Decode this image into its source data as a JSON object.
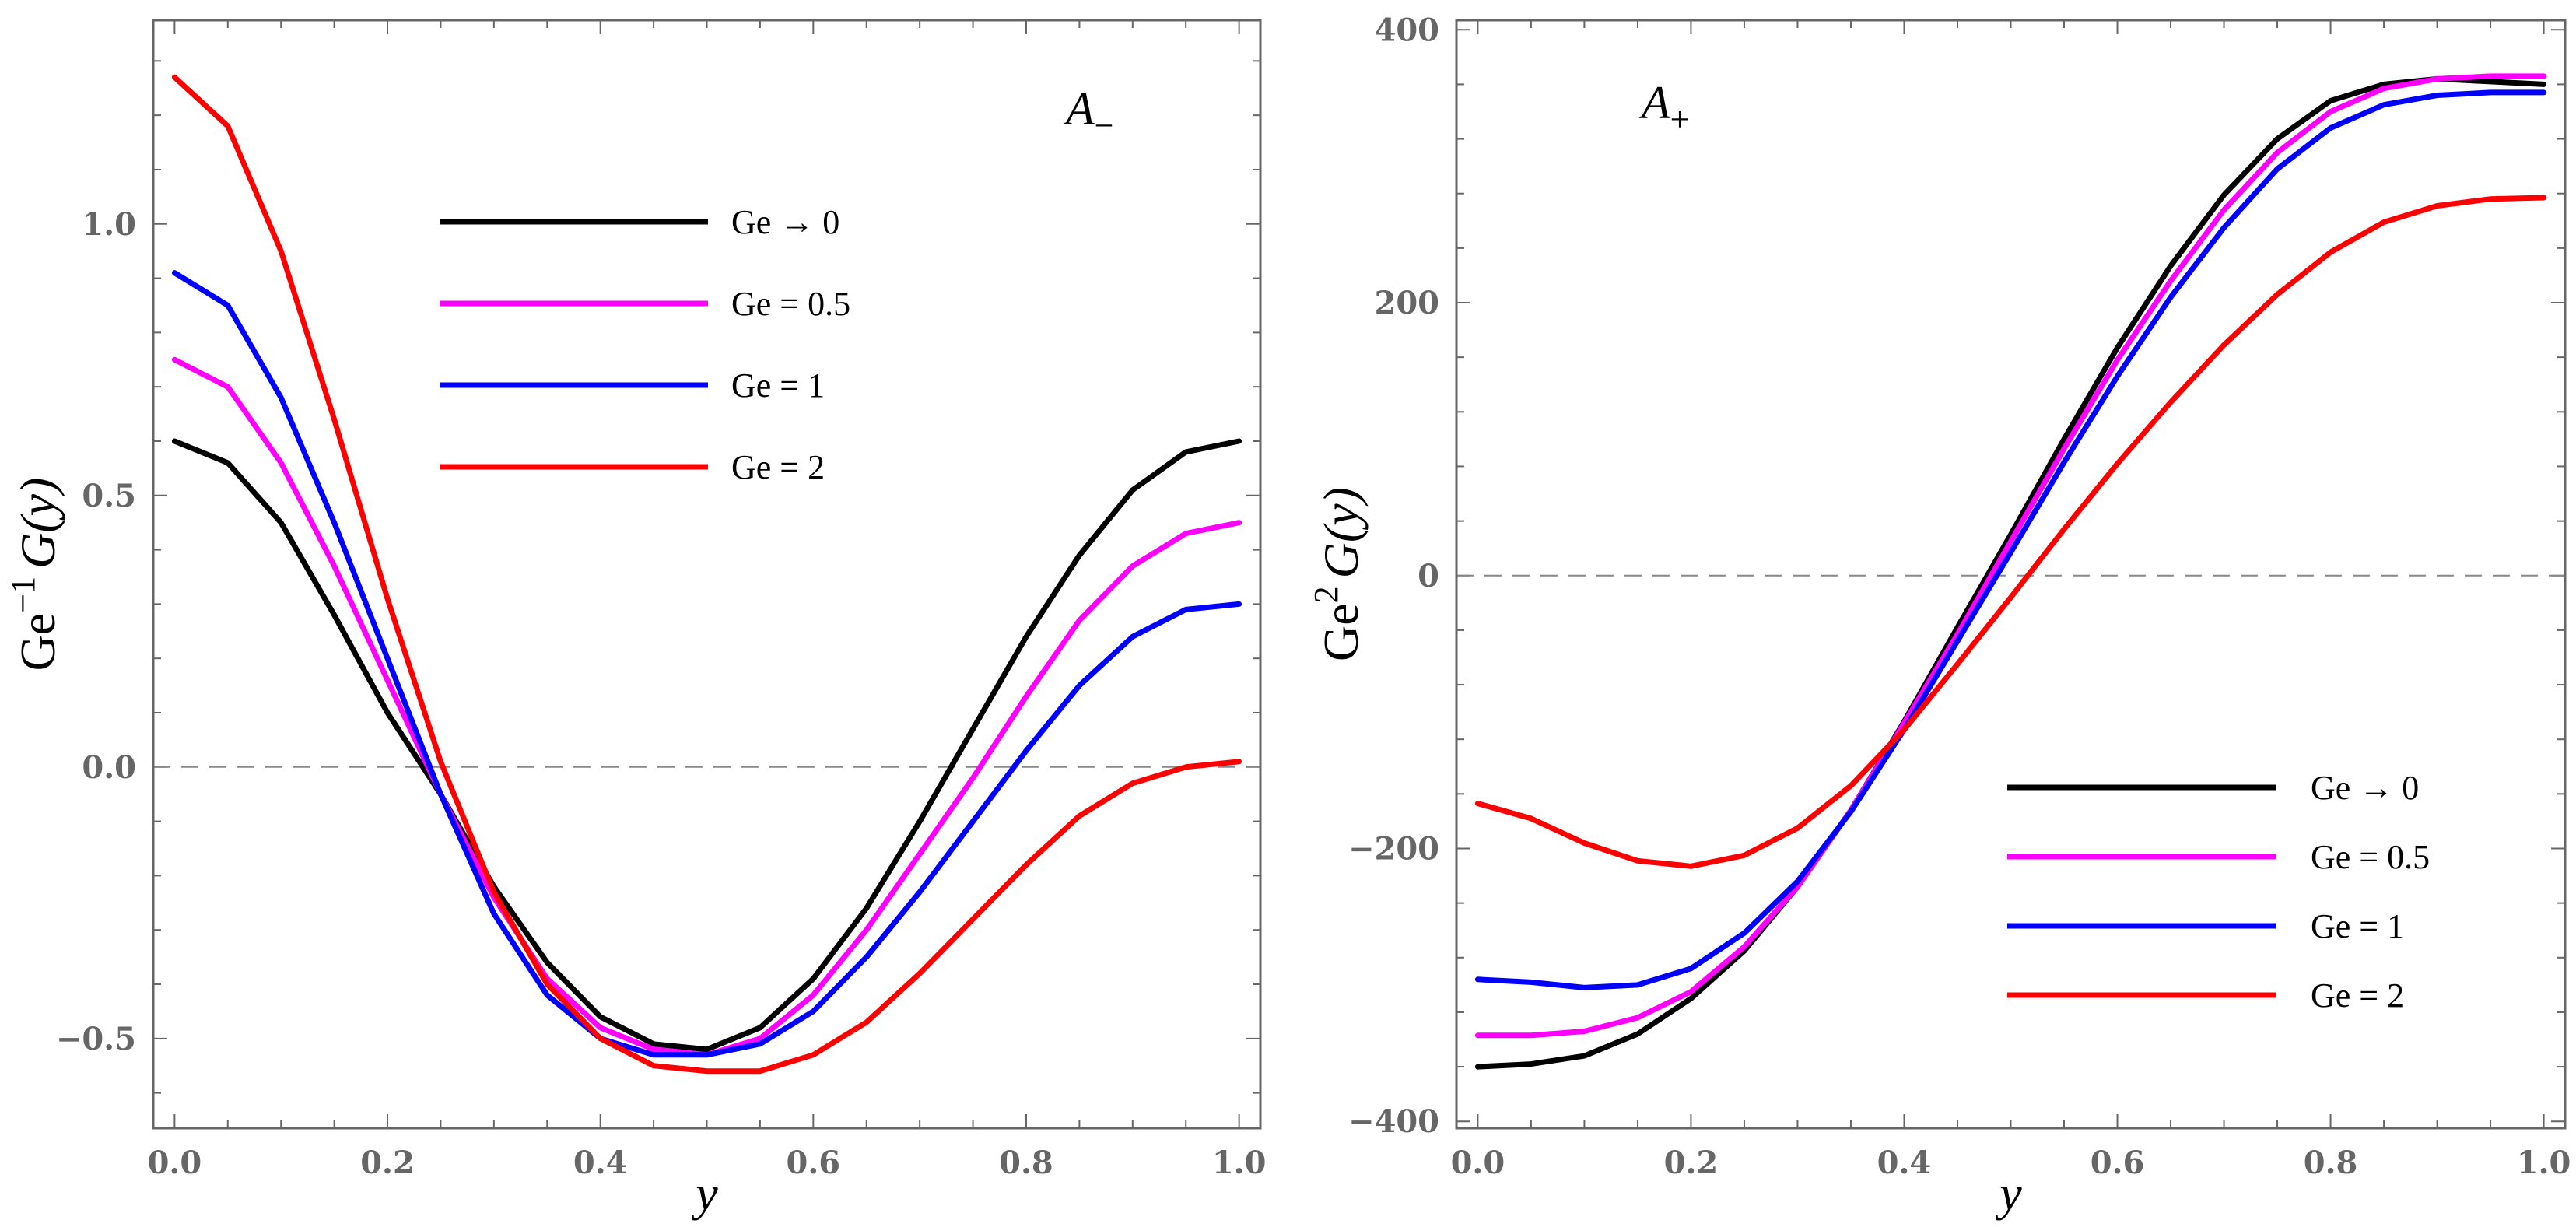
{
  "chart_data": [
    {
      "type": "line",
      "panel_label": "A",
      "panel_label_sub": "−",
      "xlabel": "y",
      "ylabel": "Ge",
      "ylabel_sup": "−1",
      "ylabel_rest": "G(y)",
      "xlim": [
        -0.02,
        1.02
      ],
      "ylim": [
        -0.665,
        1.375
      ],
      "xticks": [
        0,
        0.2,
        0.4,
        0.6,
        0.8,
        1.0
      ],
      "xtick_labels": [
        "0.0",
        "0.2",
        "0.4",
        "0.6",
        "0.8",
        "1.0"
      ],
      "yticks": [
        -0.5,
        0,
        0.5,
        1.0
      ],
      "ytick_labels": [
        "−0.5",
        "0.0",
        "0.5",
        "1.0"
      ],
      "ref_line": 0,
      "legend_position": "top-center",
      "series": [
        {
          "name": "Ge → 0",
          "color": "#000000",
          "x": [
            0,
            0.05,
            0.1,
            0.15,
            0.2,
            0.25,
            0.3,
            0.35,
            0.4,
            0.45,
            0.5,
            0.55,
            0.6,
            0.65,
            0.7,
            0.75,
            0.8,
            0.85,
            0.9,
            0.95,
            1.0
          ],
          "y": [
            0.6,
            0.56,
            0.45,
            0.28,
            0.1,
            -0.05,
            -0.22,
            -0.36,
            -0.46,
            -0.51,
            -0.52,
            -0.48,
            -0.39,
            -0.26,
            -0.1,
            0.07,
            0.24,
            0.39,
            0.51,
            0.58,
            0.6
          ]
        },
        {
          "name": "Ge = 0.5",
          "color": "#ff00ff",
          "x": [
            0,
            0.05,
            0.1,
            0.15,
            0.2,
            0.25,
            0.3,
            0.35,
            0.4,
            0.45,
            0.5,
            0.55,
            0.6,
            0.65,
            0.7,
            0.75,
            0.8,
            0.85,
            0.9,
            0.95,
            1.0
          ],
          "y": [
            0.75,
            0.7,
            0.56,
            0.37,
            0.16,
            -0.05,
            -0.24,
            -0.39,
            -0.48,
            -0.52,
            -0.53,
            -0.5,
            -0.42,
            -0.3,
            -0.16,
            -0.02,
            0.13,
            0.27,
            0.37,
            0.43,
            0.45
          ]
        },
        {
          "name": "Ge = 1",
          "color": "#0000ff",
          "x": [
            0,
            0.05,
            0.1,
            0.15,
            0.2,
            0.25,
            0.3,
            0.35,
            0.4,
            0.45,
            0.5,
            0.55,
            0.6,
            0.65,
            0.7,
            0.75,
            0.8,
            0.85,
            0.9,
            0.95,
            1.0
          ],
          "y": [
            0.91,
            0.85,
            0.68,
            0.45,
            0.2,
            -0.05,
            -0.27,
            -0.42,
            -0.5,
            -0.53,
            -0.53,
            -0.51,
            -0.45,
            -0.35,
            -0.23,
            -0.1,
            0.03,
            0.15,
            0.24,
            0.29,
            0.3
          ]
        },
        {
          "name": "Ge = 2",
          "color": "#ff0000",
          "x": [
            0,
            0.05,
            0.1,
            0.15,
            0.2,
            0.25,
            0.3,
            0.35,
            0.4,
            0.45,
            0.5,
            0.55,
            0.6,
            0.65,
            0.7,
            0.75,
            0.8,
            0.85,
            0.9,
            0.95,
            1.0
          ],
          "y": [
            1.27,
            1.18,
            0.95,
            0.64,
            0.31,
            0.01,
            -0.23,
            -0.4,
            -0.5,
            -0.55,
            -0.56,
            -0.56,
            -0.53,
            -0.47,
            -0.38,
            -0.28,
            -0.18,
            -0.09,
            -0.03,
            0.0,
            0.01
          ]
        }
      ]
    },
    {
      "type": "line",
      "panel_label": "A",
      "panel_label_sub": "+",
      "xlabel": "y",
      "ylabel": "Ge",
      "ylabel_sup": "2",
      "ylabel_rest": "G(y)",
      "xlim": [
        -0.02,
        1.02
      ],
      "ylim": [
        -405,
        407
      ],
      "xticks": [
        0,
        0.2,
        0.4,
        0.6,
        0.8,
        1.0
      ],
      "xtick_labels": [
        "0.0",
        "0.2",
        "0.4",
        "0.6",
        "0.8",
        "1.0"
      ],
      "yticks": [
        -400,
        -200,
        0,
        200,
        400
      ],
      "ytick_labels": [
        "−400",
        "−200",
        "0",
        "200",
        "400"
      ],
      "ref_line": 0,
      "legend_position": "bottom-right",
      "series": [
        {
          "name": "Ge → 0",
          "color": "#000000",
          "x": [
            0,
            0.05,
            0.1,
            0.15,
            0.2,
            0.25,
            0.3,
            0.35,
            0.4,
            0.45,
            0.5,
            0.55,
            0.6,
            0.65,
            0.7,
            0.75,
            0.8,
            0.85,
            0.9,
            0.95,
            1.0
          ],
          "y": [
            -360,
            -358,
            -352,
            -336,
            -310,
            -275,
            -228,
            -172,
            -107,
            -38,
            30,
            100,
            167,
            227,
            279,
            320,
            348,
            360,
            364,
            362,
            360
          ]
        },
        {
          "name": "Ge = 0.5",
          "color": "#ff00ff",
          "x": [
            0,
            0.05,
            0.1,
            0.15,
            0.2,
            0.25,
            0.3,
            0.35,
            0.4,
            0.45,
            0.5,
            0.55,
            0.6,
            0.65,
            0.7,
            0.75,
            0.8,
            0.85,
            0.9,
            0.95,
            1.0
          ],
          "y": [
            -337,
            -337,
            -334,
            -324,
            -305,
            -272,
            -228,
            -172,
            -108,
            -43,
            25,
            93,
            158,
            216,
            268,
            310,
            340,
            357,
            364,
            366,
            366
          ]
        },
        {
          "name": "Ge = 1",
          "color": "#0000ff",
          "x": [
            0,
            0.05,
            0.1,
            0.15,
            0.2,
            0.25,
            0.3,
            0.35,
            0.4,
            0.45,
            0.5,
            0.55,
            0.6,
            0.65,
            0.7,
            0.75,
            0.8,
            0.85,
            0.9,
            0.95,
            1.0
          ],
          "y": [
            -296,
            -298,
            -302,
            -300,
            -288,
            -262,
            -224,
            -173,
            -113,
            -48,
            17,
            83,
            146,
            204,
            255,
            298,
            328,
            345,
            352,
            354,
            354
          ]
        },
        {
          "name": "Ge = 2",
          "color": "#ff0000",
          "x": [
            0,
            0.05,
            0.1,
            0.15,
            0.2,
            0.25,
            0.3,
            0.35,
            0.4,
            0.45,
            0.5,
            0.55,
            0.6,
            0.65,
            0.7,
            0.75,
            0.8,
            0.85,
            0.9,
            0.95,
            1.0
          ],
          "y": [
            -167,
            -178,
            -196,
            -209,
            -213,
            -205,
            -185,
            -154,
            -113,
            -65,
            -16,
            34,
            82,
            127,
            169,
            206,
            237,
            259,
            271,
            276,
            277
          ]
        }
      ]
    }
  ]
}
